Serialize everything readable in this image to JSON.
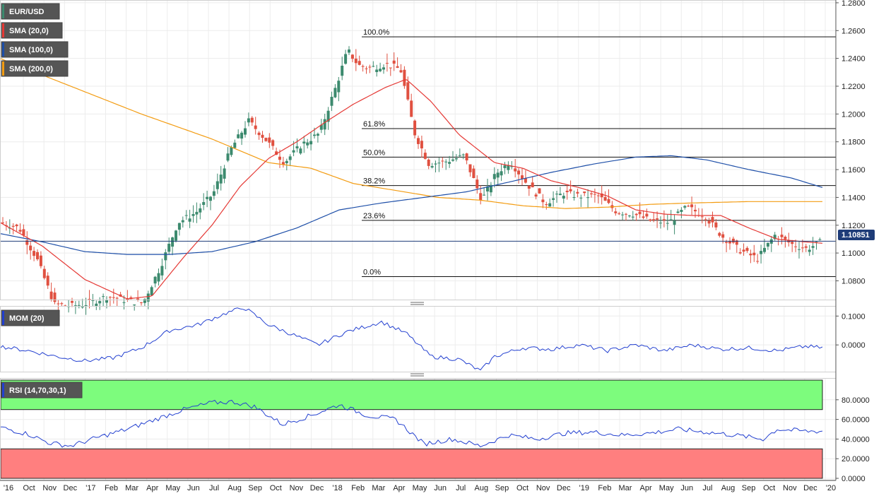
{
  "chart_data": {
    "type": "candlestick",
    "symbol": "EUR/USD",
    "indicators": {
      "sma20": {
        "label": "SMA (20,0)",
        "color": "#e53935"
      },
      "sma100": {
        "label": "SMA (100,0)",
        "color": "#1e4fa8"
      },
      "sma200": {
        "label": "SMA (200,0)",
        "color": "#f39c12"
      }
    },
    "current_price": "1.10851",
    "price_axis": {
      "ylim": [
        1.066,
        1.282
      ],
      "ticks": [
        "1.2800",
        "1.2600",
        "1.2400",
        "1.2200",
        "1.2000",
        "1.1800",
        "1.1600",
        "1.1400",
        "1.1200",
        "1.1000",
        "1.0800"
      ],
      "tick_values": [
        1.28,
        1.26,
        1.24,
        1.22,
        1.2,
        1.18,
        1.16,
        1.14,
        1.12,
        1.1,
        1.08
      ]
    },
    "fibonacci": [
      {
        "label": "100.0%",
        "value": 1.2555
      },
      {
        "label": "61.8%",
        "value": 1.1895
      },
      {
        "label": "50.0%",
        "value": 1.169
      },
      {
        "label": "38.2%",
        "value": 1.1485
      },
      {
        "label": "23.6%",
        "value": 1.1235
      },
      {
        "label": "0.0%",
        "value": 1.083
      }
    ],
    "x_axis": {
      "labels": [
        "'16",
        "Oct",
        "Nov",
        "Dec",
        "'17",
        "Feb",
        "Mar",
        "Apr",
        "May",
        "Jun",
        "Jul",
        "Aug",
        "Sep",
        "Oct",
        "Nov",
        "Dec",
        "'18",
        "Feb",
        "Mar",
        "Apr",
        "May",
        "Jun",
        "Jul",
        "Aug",
        "Sep",
        "Oct",
        "Nov",
        "Dec",
        "'19",
        "Feb",
        "Mar",
        "Apr",
        "May",
        "Jun",
        "Jul",
        "Aug",
        "Sep",
        "Oct",
        "Nov",
        "Dec",
        "'20"
      ]
    },
    "price_keys": [
      [
        0,
        1.122
      ],
      [
        25,
        1.118
      ],
      [
        50,
        1.096
      ],
      [
        75,
        1.063
      ],
      [
        100,
        1.062
      ],
      [
        125,
        1.064
      ],
      [
        150,
        1.069
      ],
      [
        175,
        1.066
      ],
      [
        200,
        1.064
      ],
      [
        225,
        1.09
      ],
      [
        250,
        1.122
      ],
      [
        275,
        1.129
      ],
      [
        300,
        1.143
      ],
      [
        325,
        1.175
      ],
      [
        350,
        1.195
      ],
      [
        375,
        1.181
      ],
      [
        400,
        1.165
      ],
      [
        425,
        1.178
      ],
      [
        450,
        1.186
      ],
      [
        475,
        1.222
      ],
      [
        490,
        1.246
      ],
      [
        505,
        1.235
      ],
      [
        520,
        1.233
      ],
      [
        545,
        1.236
      ],
      [
        565,
        1.232
      ],
      [
        585,
        1.186
      ],
      [
        605,
        1.164
      ],
      [
        630,
        1.166
      ],
      [
        655,
        1.17
      ],
      [
        680,
        1.138
      ],
      [
        700,
        1.157
      ],
      [
        720,
        1.166
      ],
      [
        745,
        1.149
      ],
      [
        770,
        1.136
      ],
      [
        795,
        1.143
      ],
      [
        820,
        1.141
      ],
      [
        845,
        1.141
      ],
      [
        870,
        1.13
      ],
      [
        895,
        1.128
      ],
      [
        920,
        1.123
      ],
      [
        945,
        1.122
      ],
      [
        970,
        1.133
      ],
      [
        995,
        1.127
      ],
      [
        1020,
        1.112
      ],
      [
        1045,
        1.102
      ],
      [
        1070,
        1.096
      ],
      [
        1095,
        1.113
      ],
      [
        1120,
        1.106
      ],
      [
        1140,
        1.103
      ],
      [
        1160,
        1.108
      ]
    ],
    "sma20_keys": [
      [
        0,
        1.122
      ],
      [
        60,
        1.105
      ],
      [
        120,
        1.081
      ],
      [
        180,
        1.067
      ],
      [
        215,
        1.069
      ],
      [
        260,
        1.097
      ],
      [
        300,
        1.12
      ],
      [
        340,
        1.148
      ],
      [
        380,
        1.168
      ],
      [
        420,
        1.18
      ],
      [
        460,
        1.194
      ],
      [
        500,
        1.207
      ],
      [
        545,
        1.219
      ],
      [
        575,
        1.225
      ],
      [
        610,
        1.209
      ],
      [
        650,
        1.185
      ],
      [
        700,
        1.165
      ],
      [
        740,
        1.161
      ],
      [
        780,
        1.152
      ],
      [
        820,
        1.147
      ],
      [
        860,
        1.141
      ],
      [
        900,
        1.131
      ],
      [
        940,
        1.128
      ],
      [
        980,
        1.127
      ],
      [
        1020,
        1.127
      ],
      [
        1060,
        1.118
      ],
      [
        1100,
        1.11
      ],
      [
        1140,
        1.108
      ],
      [
        1165,
        1.107
      ]
    ],
    "sma100_keys": [
      [
        0,
        1.114
      ],
      [
        60,
        1.108
      ],
      [
        120,
        1.101
      ],
      [
        180,
        1.099
      ],
      [
        240,
        1.099
      ],
      [
        300,
        1.101
      ],
      [
        360,
        1.108
      ],
      [
        420,
        1.118
      ],
      [
        480,
        1.131
      ],
      [
        540,
        1.136
      ],
      [
        600,
        1.14
      ],
      [
        660,
        1.144
      ],
      [
        720,
        1.151
      ],
      [
        780,
        1.158
      ],
      [
        840,
        1.164
      ],
      [
        900,
        1.169
      ],
      [
        950,
        1.17
      ],
      [
        1000,
        1.167
      ],
      [
        1060,
        1.16
      ],
      [
        1120,
        1.154
      ],
      [
        1165,
        1.147
      ]
    ],
    "sma200_keys": [
      [
        0,
        1.24
      ],
      [
        100,
        1.22
      ],
      [
        200,
        1.2
      ],
      [
        300,
        1.182
      ],
      [
        380,
        1.165
      ],
      [
        440,
        1.161
      ],
      [
        500,
        1.15
      ],
      [
        560,
        1.145
      ],
      [
        620,
        1.14
      ],
      [
        680,
        1.138
      ],
      [
        740,
        1.134
      ],
      [
        800,
        1.132
      ],
      [
        860,
        1.133
      ],
      [
        920,
        1.135
      ],
      [
        980,
        1.136
      ],
      [
        1060,
        1.137
      ],
      [
        1165,
        1.137
      ]
    ],
    "mom": {
      "label": "MOM (20)",
      "ticks": [
        "0.1000",
        "0.0000"
      ],
      "tick_values": [
        0.1,
        0.0
      ],
      "ylim": [
        -0.095,
        0.135
      ],
      "keys": [
        [
          0,
          -0.005
        ],
        [
          40,
          -0.02
        ],
        [
          80,
          -0.04
        ],
        [
          120,
          -0.055
        ],
        [
          160,
          -0.045
        ],
        [
          200,
          -0.01
        ],
        [
          240,
          0.05
        ],
        [
          280,
          0.07
        ],
        [
          320,
          0.11
        ],
        [
          345,
          0.13
        ],
        [
          380,
          0.07
        ],
        [
          420,
          0.03
        ],
        [
          450,
          0.0
        ],
        [
          490,
          0.045
        ],
        [
          540,
          0.08
        ],
        [
          575,
          0.04
        ],
        [
          610,
          -0.04
        ],
        [
          650,
          -0.05
        ],
        [
          680,
          -0.09
        ],
        [
          700,
          -0.04
        ],
        [
          740,
          -0.01
        ],
        [
          780,
          -0.015
        ],
        [
          820,
          0.0
        ],
        [
          860,
          -0.02
        ],
        [
          900,
          0.0
        ],
        [
          940,
          -0.02
        ],
        [
          980,
          0.0
        ],
        [
          1020,
          -0.015
        ],
        [
          1060,
          -0.01
        ],
        [
          1100,
          -0.02
        ],
        [
          1140,
          -0.005
        ],
        [
          1165,
          -0.01
        ]
      ]
    },
    "rsi": {
      "label": "RSI (14,70,30,1)",
      "ticks": [
        "80.0000",
        "60.0000",
        "40.0000",
        "20.0000",
        "0.0000"
      ],
      "tick_values": [
        80,
        60,
        40,
        20,
        0
      ],
      "ylim": [
        0,
        100
      ],
      "overbought": 70,
      "oversold": 30,
      "keys": [
        [
          0,
          52
        ],
        [
          40,
          45
        ],
        [
          70,
          36
        ],
        [
          100,
          33
        ],
        [
          140,
          42
        ],
        [
          180,
          50
        ],
        [
          220,
          60
        ],
        [
          260,
          70
        ],
        [
          300,
          77
        ],
        [
          330,
          78
        ],
        [
          360,
          73
        ],
        [
          400,
          55
        ],
        [
          440,
          64
        ],
        [
          480,
          75
        ],
        [
          520,
          64
        ],
        [
          560,
          60
        ],
        [
          600,
          35
        ],
        [
          640,
          40
        ],
        [
          680,
          33
        ],
        [
          720,
          44
        ],
        [
          760,
          40
        ],
        [
          800,
          46
        ],
        [
          840,
          47
        ],
        [
          880,
          44
        ],
        [
          920,
          46
        ],
        [
          960,
          50
        ],
        [
          1000,
          47
        ],
        [
          1040,
          44
        ],
        [
          1080,
          40
        ],
        [
          1100,
          50
        ],
        [
          1140,
          48
        ],
        [
          1165,
          48
        ]
      ]
    }
  }
}
